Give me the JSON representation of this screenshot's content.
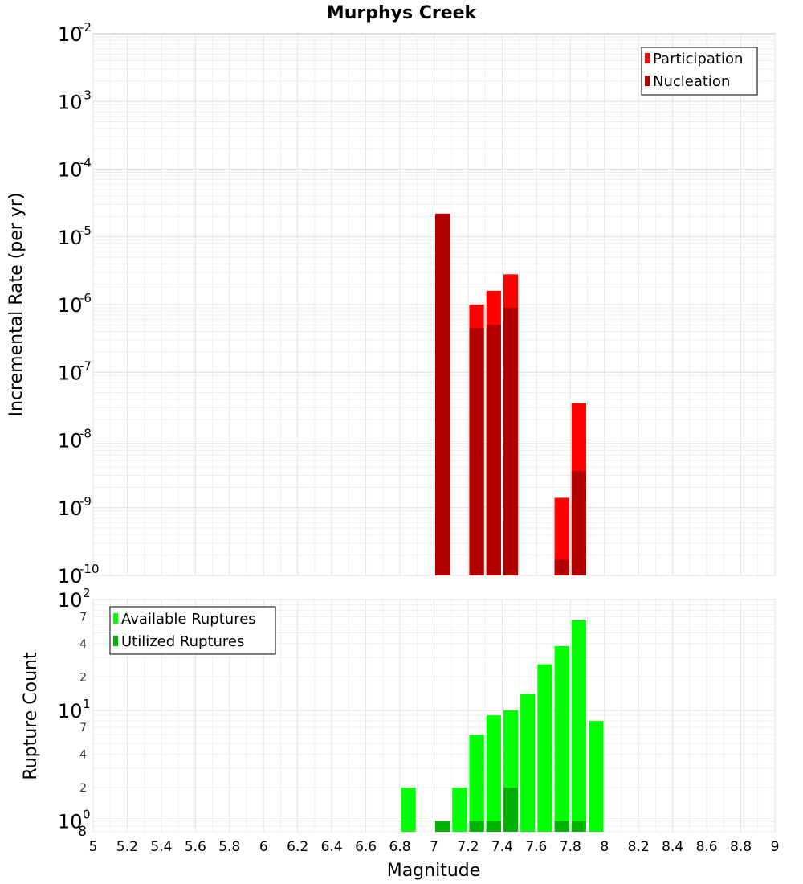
{
  "chart_data": [
    {
      "type": "bar",
      "title": "Murphys Creek",
      "xlabel": "",
      "ylabel": "Incremental Rate (per yr)",
      "yscale": "log",
      "ylim": [
        1e-10,
        0.01
      ],
      "xlim": [
        5,
        9
      ],
      "bar_width": 0.1,
      "grid": true,
      "legend_position": "top-right",
      "y_ticks": [
        {
          "base": "10",
          "exp": "-10"
        },
        {
          "base": "10",
          "exp": "-9"
        },
        {
          "base": "10",
          "exp": "-8"
        },
        {
          "base": "10",
          "exp": "-7"
        },
        {
          "base": "10",
          "exp": "-6"
        },
        {
          "base": "10",
          "exp": "-5"
        },
        {
          "base": "10",
          "exp": "-4"
        },
        {
          "base": "10",
          "exp": "-3"
        },
        {
          "base": "10",
          "exp": "-2"
        }
      ],
      "series": [
        {
          "name": "Participation",
          "color": "#ff0000",
          "x": [
            7.05,
            7.25,
            7.35,
            7.45,
            7.75,
            7.85
          ],
          "values": [
            2.2e-05,
            1e-06,
            1.6e-06,
            2.8e-06,
            1.4e-09,
            3.5e-08
          ]
        },
        {
          "name": "Nucleation",
          "color": "#b20000",
          "x": [
            7.05,
            7.25,
            7.35,
            7.45,
            7.75,
            7.85
          ],
          "values": [
            2.2e-05,
            4.5e-07,
            5e-07,
            9e-07,
            1.7e-10,
            3.5e-09
          ]
        }
      ]
    },
    {
      "type": "bar",
      "title": "",
      "xlabel": "Magnitude",
      "ylabel": "Rupture Count",
      "yscale": "log",
      "ylim": [
        0.8,
        100
      ],
      "xlim": [
        5,
        9
      ],
      "bar_width": 0.1,
      "grid": true,
      "legend_position": "top-left",
      "x_ticks": [
        "5",
        "5.2",
        "5.4",
        "5.6",
        "5.8",
        "6",
        "6.2",
        "6.4",
        "6.6",
        "6.8",
        "7",
        "7.2",
        "7.4",
        "7.6",
        "7.8",
        "8",
        "8.2",
        "8.4",
        "8.6",
        "8.8",
        "9"
      ],
      "y_major_ticks": [
        {
          "value": 1,
          "base": "10",
          "exp": "0"
        },
        {
          "value": 10,
          "base": "10",
          "exp": "1"
        },
        {
          "value": 100,
          "base": "10",
          "exp": "2"
        }
      ],
      "y_minor_ticks": [
        {
          "value": 0.8,
          "label": "8"
        },
        {
          "value": 2,
          "label": "2"
        },
        {
          "value": 4,
          "label": "4"
        },
        {
          "value": 7,
          "label": "7"
        },
        {
          "value": 20,
          "label": "2"
        },
        {
          "value": 40,
          "label": "4"
        },
        {
          "value": 70,
          "label": "7"
        }
      ],
      "series": [
        {
          "name": "Available Ruptures",
          "color": "#00ff00",
          "x": [
            6.85,
            7.05,
            7.15,
            7.25,
            7.35,
            7.45,
            7.55,
            7.65,
            7.75,
            7.85,
            7.95
          ],
          "values": [
            2,
            1,
            2,
            6,
            9,
            10,
            14,
            26,
            38,
            65,
            8
          ]
        },
        {
          "name": "Utilized Ruptures",
          "color": "#00b200",
          "x": [
            7.05,
            7.25,
            7.35,
            7.45,
            7.75,
            7.85
          ],
          "values": [
            1,
            1,
            1,
            2,
            1,
            1
          ]
        }
      ]
    }
  ]
}
